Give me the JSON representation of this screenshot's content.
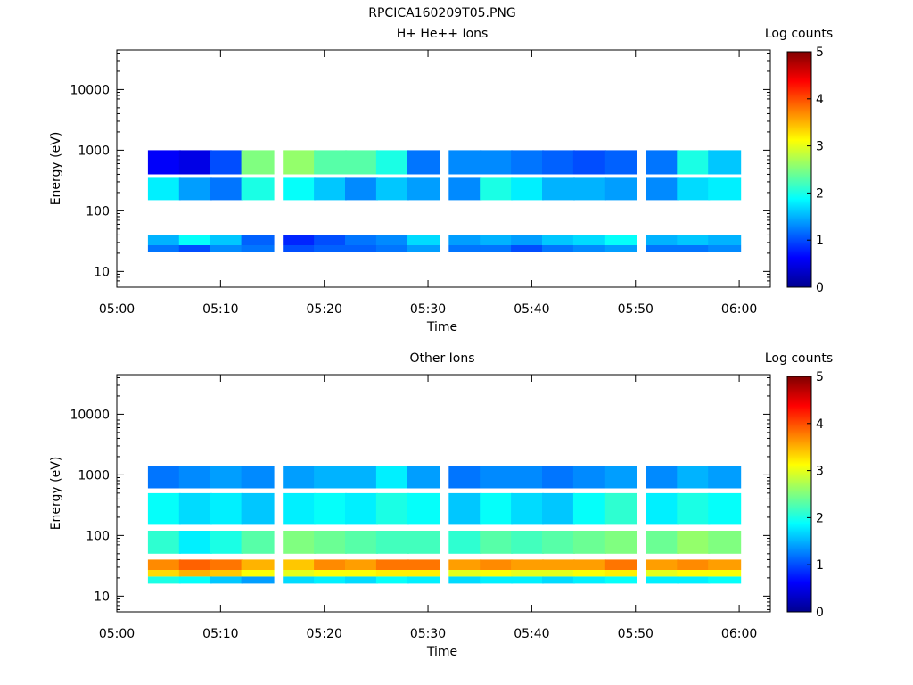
{
  "figure": {
    "title": "RPCICA160209T05.PNG"
  },
  "chart_data": [
    {
      "type": "heatmap",
      "title": "H+ He++ Ions",
      "xlabel": "Time",
      "ylabel": "Energy (eV)",
      "x_ticks": [
        "05:00",
        "05:10",
        "05:20",
        "05:30",
        "05:40",
        "05:50",
        "06:00"
      ],
      "x_range": [
        "05:00",
        "06:03"
      ],
      "y_scale": "log",
      "y_ticks": [
        10,
        100,
        1000,
        10000
      ],
      "y_tick_labels": [
        "10",
        "100",
        "1000",
        "10000"
      ],
      "y_range": [
        5.5,
        45000
      ],
      "colorbar": {
        "label": "Log counts",
        "min": 0,
        "max": 5,
        "ticks": [
          "0",
          "1",
          "2",
          "3",
          "4",
          "5"
        ]
      },
      "time_bins": [
        "05:03",
        "05:06",
        "05:09",
        "05:12",
        "05:16",
        "05:19",
        "05:22",
        "05:25",
        "05:28",
        "05:32",
        "05:35",
        "05:38",
        "05:41",
        "05:44",
        "05:47",
        "05:51",
        "05:54",
        "05:57"
      ],
      "bands": [
        {
          "e_low": 21,
          "e_high": 27,
          "values": [
            1.2,
            1.0,
            1.3,
            1.2,
            1.0,
            1.1,
            1.1,
            1.2,
            1.4,
            1.2,
            1.2,
            1.0,
            1.2,
            1.3,
            1.4,
            1.2,
            1.2,
            1.3
          ]
        },
        {
          "e_low": 27,
          "e_high": 40,
          "values": [
            1.5,
            1.9,
            1.6,
            1.1,
            0.8,
            1.0,
            1.2,
            1.3,
            1.7,
            1.4,
            1.5,
            1.4,
            1.6,
            1.7,
            1.9,
            1.5,
            1.6,
            1.5
          ]
        },
        {
          "e_low": 150,
          "e_high": 350,
          "values": [
            1.8,
            1.4,
            1.2,
            2.0,
            1.9,
            1.6,
            1.3,
            1.6,
            1.4,
            1.3,
            2.0,
            1.8,
            1.5,
            1.5,
            1.4,
            1.3,
            1.7,
            1.8
          ]
        },
        {
          "e_low": 400,
          "e_high": 1000,
          "values": [
            0.6,
            0.5,
            1.0,
            2.5,
            2.6,
            2.3,
            2.3,
            2.0,
            1.2,
            1.3,
            1.3,
            1.2,
            1.1,
            1.0,
            1.1,
            1.2,
            2.0,
            1.6
          ]
        }
      ]
    },
    {
      "type": "heatmap",
      "title": "Other Ions",
      "xlabel": "Time",
      "ylabel": "Energy (eV)",
      "x_ticks": [
        "05:00",
        "05:10",
        "05:20",
        "05:30",
        "05:40",
        "05:50",
        "06:00"
      ],
      "x_range": [
        "05:00",
        "06:03"
      ],
      "y_scale": "log",
      "y_ticks": [
        10,
        100,
        1000,
        10000
      ],
      "y_tick_labels": [
        "10",
        "100",
        "1000",
        "10000"
      ],
      "y_range": [
        5.5,
        45000
      ],
      "colorbar": {
        "label": "Log counts",
        "min": 0,
        "max": 5,
        "ticks": [
          "0",
          "1",
          "2",
          "3",
          "4",
          "5"
        ]
      },
      "time_bins": [
        "05:03",
        "05:06",
        "05:09",
        "05:12",
        "05:16",
        "05:19",
        "05:22",
        "05:25",
        "05:28",
        "05:32",
        "05:35",
        "05:38",
        "05:41",
        "05:44",
        "05:47",
        "05:51",
        "05:54",
        "05:57"
      ],
      "bands": [
        {
          "e_low": 16,
          "e_high": 21,
          "values": [
            2.0,
            1.9,
            1.6,
            1.4,
            1.7,
            1.8,
            1.7,
            1.9,
            1.8,
            1.7,
            1.8,
            1.8,
            1.7,
            1.8,
            1.9,
            1.8,
            1.8,
            1.9
          ]
        },
        {
          "e_low": 21,
          "e_high": 27,
          "values": [
            3.3,
            3.5,
            3.4,
            3.1,
            3.0,
            3.1,
            3.1,
            3.2,
            3.2,
            3.0,
            3.1,
            3.0,
            3.0,
            3.1,
            3.2,
            3.0,
            3.1,
            3.1
          ]
        },
        {
          "e_low": 27,
          "e_high": 40,
          "values": [
            3.7,
            3.9,
            3.8,
            3.5,
            3.4,
            3.7,
            3.6,
            3.8,
            3.8,
            3.6,
            3.7,
            3.6,
            3.6,
            3.6,
            3.8,
            3.6,
            3.7,
            3.6
          ]
        },
        {
          "e_low": 50,
          "e_high": 120,
          "values": [
            2.1,
            1.8,
            2.0,
            2.3,
            2.5,
            2.4,
            2.3,
            2.2,
            2.2,
            2.1,
            2.3,
            2.2,
            2.3,
            2.4,
            2.5,
            2.4,
            2.6,
            2.5
          ]
        },
        {
          "e_low": 150,
          "e_high": 500,
          "values": [
            1.9,
            1.7,
            1.8,
            1.6,
            1.8,
            1.9,
            1.8,
            2.0,
            1.9,
            1.6,
            1.9,
            1.7,
            1.6,
            1.9,
            2.1,
            1.8,
            2.0,
            1.9
          ]
        },
        {
          "e_low": 600,
          "e_high": 1400,
          "values": [
            1.2,
            1.3,
            1.4,
            1.3,
            1.4,
            1.5,
            1.5,
            1.8,
            1.4,
            1.2,
            1.3,
            1.3,
            1.2,
            1.3,
            1.4,
            1.3,
            1.5,
            1.4
          ]
        }
      ]
    }
  ]
}
